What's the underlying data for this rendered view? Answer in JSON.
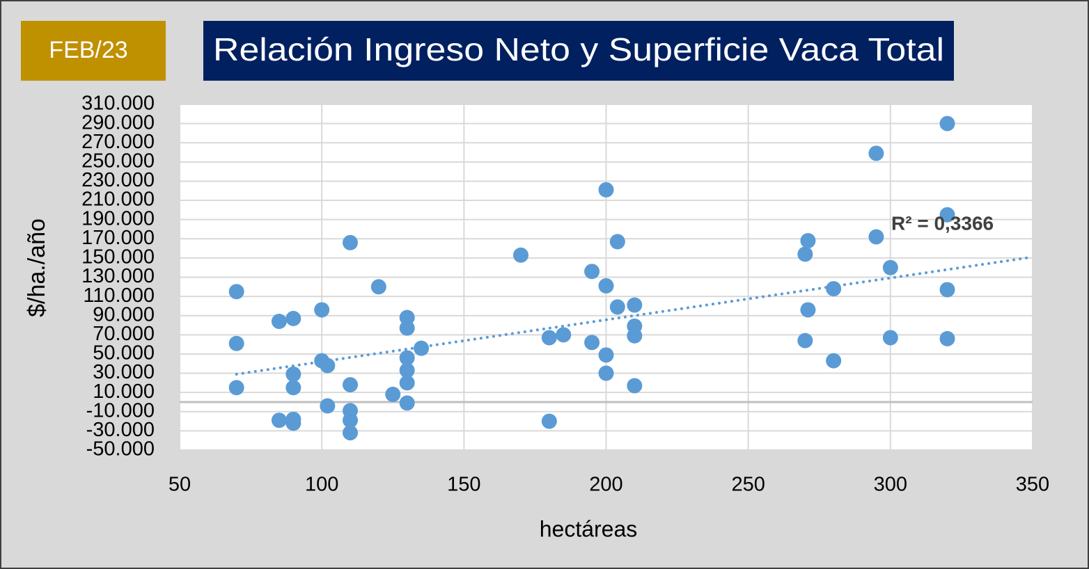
{
  "chart_data": {
    "type": "scatter",
    "date_label": "FEB/23",
    "title": "Relación Ingreso Neto y Superficie Vaca Total",
    "x_label": "hectáreas",
    "y_label": "$/ha./año",
    "annotation": "R² = 0,3366",
    "color": "#5b9bd5",
    "grid": true,
    "xlim": [
      50,
      350
    ],
    "xticks": [
      50,
      100,
      150,
      200,
      250,
      300,
      350
    ],
    "ylim": [
      -50000,
      310000
    ],
    "yticks": [
      {
        "value": -50000,
        "label": "-50.000"
      },
      {
        "value": -30000,
        "label": "-30.000"
      },
      {
        "value": -10000,
        "label": "-10.000"
      },
      {
        "value": 10000,
        "label": "10.000"
      },
      {
        "value": 30000,
        "label": "30.000"
      },
      {
        "value": 50000,
        "label": "50.000"
      },
      {
        "value": 70000,
        "label": "70.000"
      },
      {
        "value": 90000,
        "label": "90.000"
      },
      {
        "value": 110000,
        "label": "110.000"
      },
      {
        "value": 130000,
        "label": "130.000"
      },
      {
        "value": 150000,
        "label": "150.000"
      },
      {
        "value": 170000,
        "label": "170.000"
      },
      {
        "value": 190000,
        "label": "190.000"
      },
      {
        "value": 210000,
        "label": "210.000"
      },
      {
        "value": 230000,
        "label": "230.000"
      },
      {
        "value": 250000,
        "label": "250.000"
      },
      {
        "value": 270000,
        "label": "270.000"
      },
      {
        "value": 290000,
        "label": "290.000"
      },
      {
        "value": 310000,
        "label": "310.000"
      }
    ],
    "x": [
      70,
      70,
      70,
      85,
      85,
      90,
      90,
      90,
      90,
      90,
      100,
      100,
      102,
      102,
      110,
      110,
      110,
      110,
      110,
      120,
      125,
      130,
      130,
      130,
      130,
      130,
      130,
      135,
      170,
      180,
      180,
      185,
      195,
      195,
      200,
      200,
      200,
      200,
      204,
      204,
      210,
      210,
      210,
      210,
      270,
      271,
      271,
      270,
      280,
      280,
      295,
      295,
      300,
      300,
      320,
      320,
      320,
      320
    ],
    "values": [
      115000,
      61000,
      15000,
      -19000,
      84000,
      87000,
      29000,
      15000,
      -18000,
      -22000,
      96000,
      43000,
      38000,
      -4000,
      166000,
      18000,
      -9000,
      -19000,
      -32000,
      120000,
      8000,
      88000,
      77000,
      46000,
      33000,
      20000,
      -1000,
      56000,
      153000,
      67000,
      -20000,
      70000,
      136000,
      62000,
      221000,
      121000,
      49000,
      30000,
      167000,
      99000,
      101000,
      79000,
      69000,
      17000,
      154000,
      168000,
      96000,
      64000,
      118000,
      43000,
      259000,
      172000,
      140000,
      67000,
      290000,
      195000,
      117000,
      66000
    ],
    "trendline": {
      "x": [
        70,
        350
      ],
      "values": [
        29000,
        151000
      ]
    }
  }
}
